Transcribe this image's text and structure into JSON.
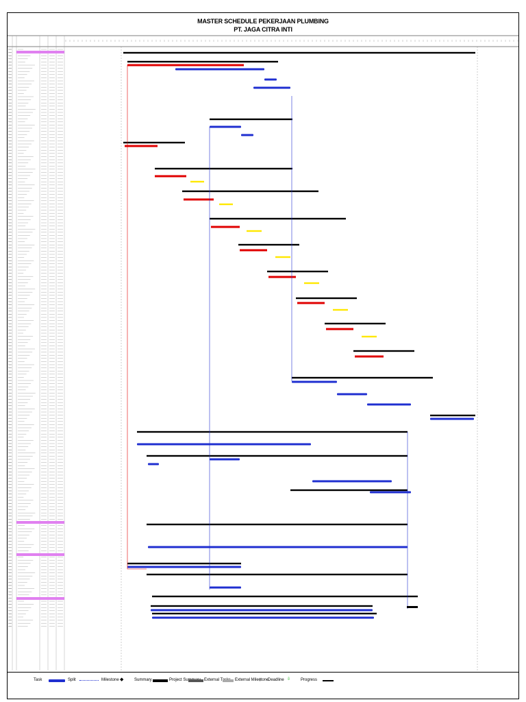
{
  "header": {
    "title_line1": "MASTER SCHEDULE PEKERJAAN PLUMBING",
    "title_line2": "PT. JAGA CITRA INTI"
  },
  "colors": {
    "critical": "#e00000",
    "task": "#1f2fd0",
    "summary": "#000000",
    "external": "#ffe800",
    "milestone_band": "#e080f0",
    "link_red": "#e00000",
    "link_blue": "#1f2fd0"
  },
  "legend": {
    "task": "Task",
    "split": "Split",
    "milestone": "Milestone",
    "summary": "Summary",
    "project_summary": "Project Summary",
    "external_tasks": "External Tasks",
    "external_milestone": "External Milestone",
    "deadline": "Deadline",
    "progress": "Progress"
  }
}
